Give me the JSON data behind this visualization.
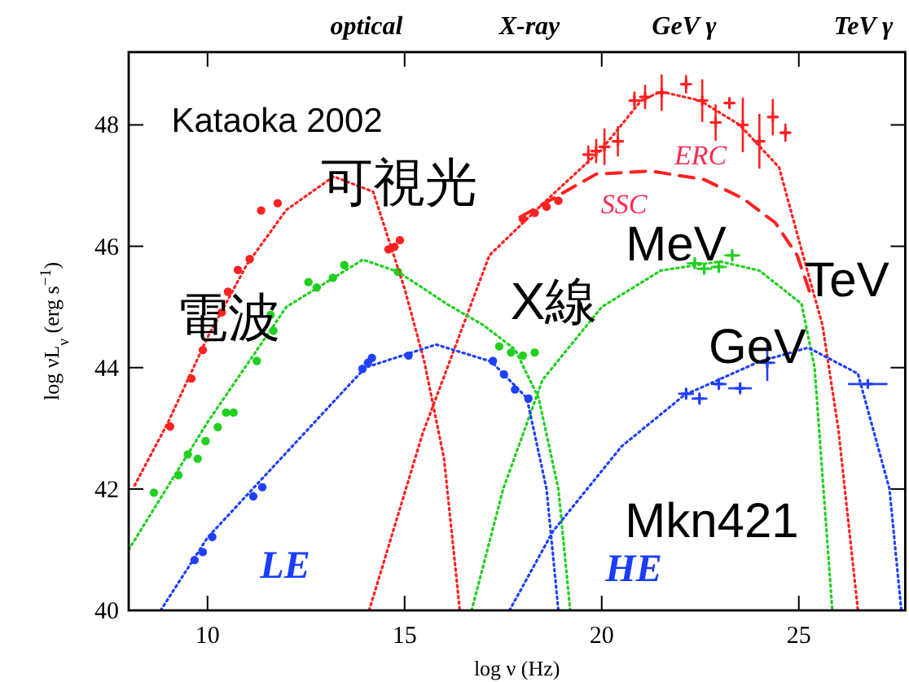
{
  "chart_data": {
    "type": "scatter",
    "xlabel": "log ν (Hz)",
    "ylabel": "log νL$_{ν}$ (erg s$^{−1}$)",
    "xlim": [
      8,
      27.7
    ],
    "ylim": [
      40,
      49.2
    ],
    "xticks": [
      10,
      15,
      20,
      25
    ],
    "yticks": [
      40,
      42,
      44,
      46,
      48
    ],
    "grid": false,
    "series": [
      {
        "color": "#ff2020",
        "marker": "circle",
        "x": [
          9.05,
          9.59,
          9.88,
          10.36,
          10.52,
          10.77,
          11.07,
          11.36,
          11.78,
          14.59,
          14.74,
          14.88,
          18.0,
          18.3,
          18.6,
          18.9
        ],
        "values": [
          43.03,
          43.82,
          44.29,
          44.91,
          45.25,
          45.61,
          45.79,
          46.59,
          46.71,
          45.95,
          45.99,
          46.1,
          46.45,
          46.55,
          46.65,
          46.75
        ]
      },
      {
        "type": "scatter",
        "color": "#ff2020",
        "marker": "cross",
        "x": [
          19.66,
          19.86,
          20.07,
          20.41,
          20.83,
          21.1,
          21.52,
          22.14,
          22.55,
          22.89,
          23.24,
          23.58,
          24.0,
          24.34,
          24.66
        ],
        "values": [
          47.51,
          47.57,
          47.64,
          47.73,
          48.4,
          48.46,
          48.53,
          48.67,
          48.4,
          48.04,
          48.36,
          48.0,
          47.73,
          48.13,
          47.87
        ],
        "errors": [
          0.15,
          0.2,
          0.3,
          0.25,
          0.15,
          0.2,
          0.3,
          0.15,
          0.35,
          0.3,
          0.1,
          0.45,
          0.45,
          0.3,
          0.15
        ],
        "xerrors": [
          0.15,
          0.15,
          0.15,
          0.15,
          0.15,
          0.15,
          0.15,
          0.15,
          0.15,
          0.15,
          0.15,
          0.15,
          0.15,
          0.15,
          0.15
        ]
      },
      {
        "type": "scatter",
        "color": "#20d020",
        "marker": "circle",
        "x": [
          8.64,
          9.26,
          9.5,
          9.75,
          9.95,
          10.26,
          10.47,
          10.66,
          11.25,
          11.67,
          11.6,
          12.56,
          12.77,
          13.18,
          13.47,
          14.83,
          17.4,
          17.7,
          18.0,
          18.3
        ],
        "values": [
          41.94,
          42.23,
          42.57,
          42.5,
          42.79,
          43.02,
          43.26,
          43.26,
          44.11,
          44.61,
          44.87,
          45.41,
          45.32,
          45.48,
          45.69,
          45.58,
          44.35,
          44.25,
          44.2,
          44.25
        ]
      },
      {
        "type": "scatter",
        "color": "#20d020",
        "marker": "cross",
        "x": [
          22.36,
          22.6,
          22.97,
          23.31
        ],
        "values": [
          45.72,
          45.63,
          45.66,
          45.85
        ],
        "errors": [
          0.1,
          0.1,
          0.1,
          0.1
        ],
        "xerrors": [
          0.2,
          0.2,
          0.2,
          0.2
        ]
      },
      {
        "type": "scatter",
        "color": "#2040ff",
        "marker": "circle",
        "x": [
          9.67,
          9.88,
          10.12,
          11.16,
          11.39,
          13.93,
          14.07,
          14.17,
          15.1,
          17.24,
          17.52,
          17.8,
          18.14
        ],
        "values": [
          40.83,
          40.96,
          41.21,
          41.88,
          42.03,
          43.98,
          44.08,
          44.16,
          44.2,
          44.11,
          43.89,
          43.64,
          43.49
        ]
      },
      {
        "type": "scatter",
        "color": "#2040ff",
        "marker": "cross",
        "x": [
          22.14,
          22.48,
          22.97,
          23.51,
          24.2,
          26.75
        ],
        "values": [
          43.57,
          43.49,
          43.73,
          43.66,
          44.08,
          43.73
        ],
        "errors": [
          0.1,
          0.1,
          0.1,
          0.1,
          0.3,
          0.05
        ],
        "xerrors": [
          0.2,
          0.2,
          0.2,
          0.3,
          0.2,
          0.5
        ]
      },
      {
        "type": "line",
        "color": "#ff2020",
        "line_style": "dotted",
        "x": [
          8.15,
          9.0,
          10.0,
          11.0,
          12.0,
          13.2,
          14.2,
          14.5,
          15.0,
          15.5,
          16.0,
          16.4
        ],
        "values": [
          42.06,
          43.1,
          44.5,
          45.7,
          46.6,
          47.15,
          46.9,
          46.3,
          45.3,
          44.1,
          42.5,
          40.0
        ]
      },
      {
        "type": "line",
        "color": "#ff2020",
        "line_style": "dotted",
        "x": [
          14.1,
          15.45,
          17.15,
          18.5,
          20.0,
          21.0,
          21.5,
          22.5,
          23.5,
          24.5,
          25.07,
          25.6,
          26.0,
          26.5
        ],
        "values": [
          40.0,
          42.9,
          45.85,
          46.7,
          47.6,
          48.4,
          48.55,
          48.4,
          48.0,
          47.3,
          45.94,
          44.7,
          43.0,
          40.0
        ]
      },
      {
        "type": "line",
        "color": "#ff2020",
        "line_style": "dashed",
        "x": [
          17.93,
          19.86,
          21.24,
          22.6,
          23.58,
          24.4,
          24.96,
          25.3
        ],
        "values": [
          46.48,
          47.19,
          47.24,
          47.1,
          46.79,
          46.39,
          45.85,
          45.2
        ]
      },
      {
        "type": "line",
        "color": "#20d020",
        "line_style": "dotted",
        "x": [
          8.0,
          10.0,
          12.0,
          13.94,
          14.83,
          16.07,
          17.0,
          17.8,
          18.4,
          18.9,
          19.2
        ],
        "values": [
          41.0,
          43.1,
          45.0,
          45.78,
          45.58,
          45.05,
          44.7,
          44.3,
          43.5,
          42.0,
          40.0
        ]
      },
      {
        "type": "line",
        "color": "#20d020",
        "line_style": "dotted",
        "x": [
          16.7,
          17.5,
          18.5,
          20.0,
          21.5,
          23.0,
          24.0,
          25.07,
          25.4,
          25.85
        ],
        "values": [
          40.0,
          42.0,
          43.8,
          45.0,
          45.6,
          45.75,
          45.6,
          45.05,
          44.0,
          40.0
        ]
      },
      {
        "type": "line",
        "color": "#2040ff",
        "line_style": "dotted",
        "x": [
          8.81,
          10.0,
          12.0,
          14.0,
          15.8,
          17.2,
          18.1,
          18.6,
          18.9
        ],
        "values": [
          40.0,
          41.2,
          42.6,
          44.0,
          44.38,
          44.1,
          43.5,
          42.0,
          40.0
        ]
      },
      {
        "type": "line",
        "color": "#2040ff",
        "line_style": "dotted",
        "x": [
          17.66,
          18.76,
          20.5,
          22.1,
          24.0,
          25.24,
          26.5,
          27.3,
          27.6
        ],
        "values": [
          40.0,
          41.3,
          42.7,
          43.55,
          44.1,
          44.33,
          43.9,
          42.0,
          40.0
        ]
      }
    ],
    "annotations": [
      "optical",
      "X-ray",
      "GeV γ",
      "TeV γ",
      "Kataoka 2002",
      "可視光",
      "電波",
      "X線",
      "MeV",
      "GeV",
      "TeV",
      "Mkn421",
      "LE",
      "HE",
      "ERC",
      "SSC"
    ]
  }
}
